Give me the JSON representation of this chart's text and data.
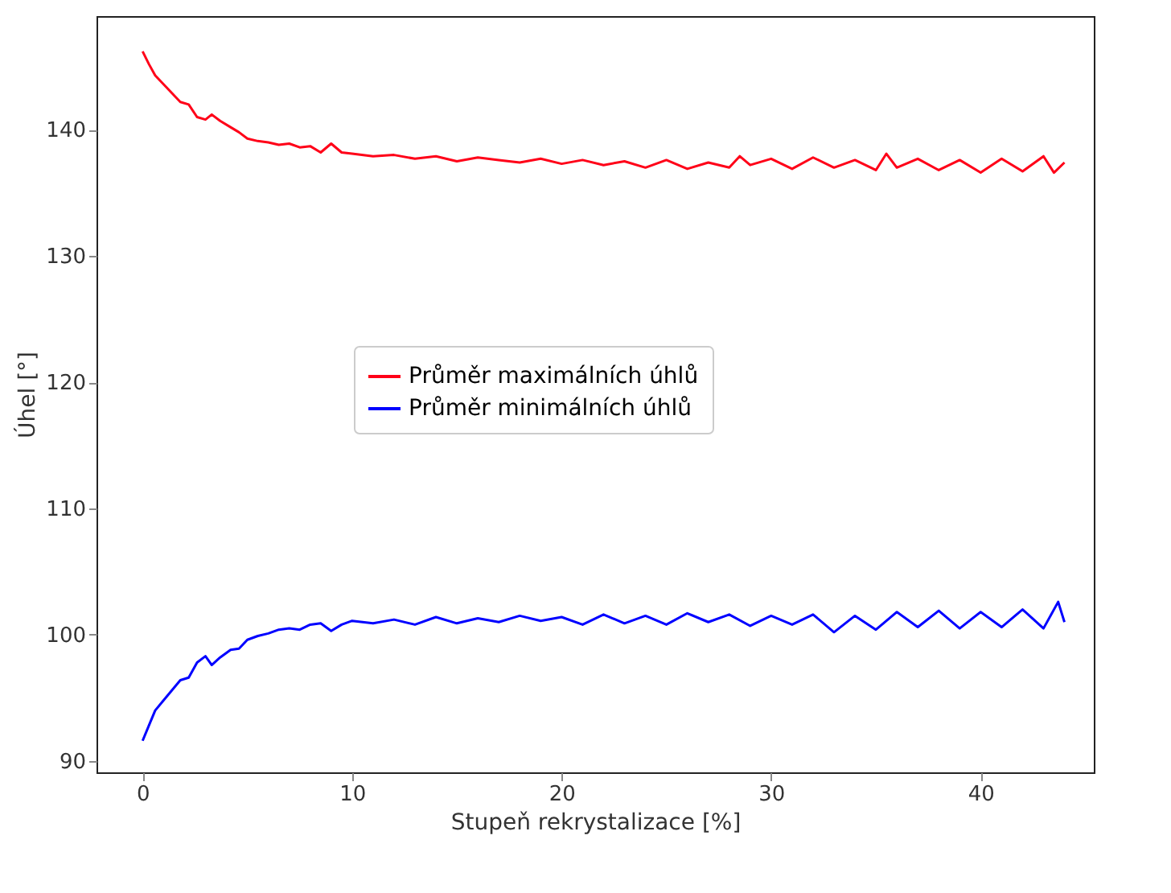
{
  "chart_data": {
    "type": "line",
    "xlabel": "Stupeň rekrystalizace [%]",
    "ylabel": "Úhel [°]",
    "xlim": [
      -2.2,
      45.4
    ],
    "ylim": [
      89.1,
      149
    ],
    "xticks": [
      0,
      10,
      20,
      30,
      40
    ],
    "yticks": [
      90,
      100,
      110,
      120,
      130,
      140
    ],
    "grid": false,
    "legend": "center",
    "marker": "none",
    "line_style": "solid",
    "series": [
      {
        "name": "Průměr maximálních úhlů",
        "color": "#ff0018",
        "x": [
          0,
          0.3,
          0.6,
          1,
          1.4,
          1.8,
          2.2,
          2.6,
          3,
          3.3,
          3.7,
          4.2,
          4.6,
          5,
          5.5,
          6,
          6.5,
          7,
          7.5,
          8,
          8.5,
          9,
          9.5,
          10,
          11,
          12,
          13,
          14,
          15,
          16,
          17,
          18,
          19,
          20,
          21,
          22,
          23,
          24,
          25,
          26,
          27,
          28,
          28.5,
          29,
          30,
          31,
          32,
          33,
          34,
          35,
          35.5,
          36,
          37,
          38,
          39,
          40,
          41,
          42,
          43,
          43.5,
          44
        ],
        "values": [
          146.2,
          145.2,
          144.3,
          143.6,
          142.9,
          142.2,
          142.0,
          141.0,
          140.8,
          141.2,
          140.7,
          140.2,
          139.8,
          139.3,
          139.1,
          139.0,
          138.8,
          138.9,
          138.6,
          138.7,
          138.2,
          138.9,
          138.2,
          138.1,
          137.9,
          138.0,
          137.7,
          137.9,
          137.5,
          137.8,
          137.6,
          137.4,
          137.7,
          137.3,
          137.6,
          137.2,
          137.5,
          137.0,
          137.6,
          136.9,
          137.4,
          137.0,
          137.9,
          137.2,
          137.7,
          136.9,
          137.8,
          137.0,
          137.6,
          136.8,
          138.1,
          137.0,
          137.7,
          136.8,
          137.6,
          136.6,
          137.7,
          136.7,
          137.9,
          136.6,
          137.4
        ]
      },
      {
        "name": "Průměr minimálních úhlů",
        "color": "#0000ff",
        "x": [
          0,
          0.3,
          0.6,
          1,
          1.4,
          1.8,
          2.2,
          2.6,
          3,
          3.3,
          3.7,
          4.2,
          4.6,
          5,
          5.5,
          6,
          6.5,
          7,
          7.5,
          8,
          8.5,
          9,
          9.5,
          10,
          11,
          12,
          13,
          14,
          15,
          16,
          17,
          18,
          19,
          20,
          21,
          22,
          23,
          24,
          25,
          26,
          27,
          28,
          29,
          30,
          31,
          32,
          33,
          34,
          35,
          36,
          37,
          38,
          39,
          40,
          41,
          42,
          43,
          43.7,
          44
        ],
        "values": [
          91.6,
          92.8,
          94.0,
          94.8,
          95.6,
          96.4,
          96.6,
          97.8,
          98.3,
          97.6,
          98.2,
          98.8,
          98.9,
          99.6,
          99.9,
          100.1,
          100.4,
          100.5,
          100.4,
          100.8,
          100.9,
          100.3,
          100.8,
          101.1,
          100.9,
          101.2,
          100.8,
          101.4,
          100.9,
          101.3,
          101.0,
          101.5,
          101.1,
          101.4,
          100.8,
          101.6,
          100.9,
          101.5,
          100.8,
          101.7,
          101.0,
          101.6,
          100.7,
          101.5,
          100.8,
          101.6,
          100.2,
          101.5,
          100.4,
          101.8,
          100.6,
          101.9,
          100.5,
          101.8,
          100.6,
          102.0,
          100.5,
          102.6,
          101.0
        ]
      }
    ]
  }
}
